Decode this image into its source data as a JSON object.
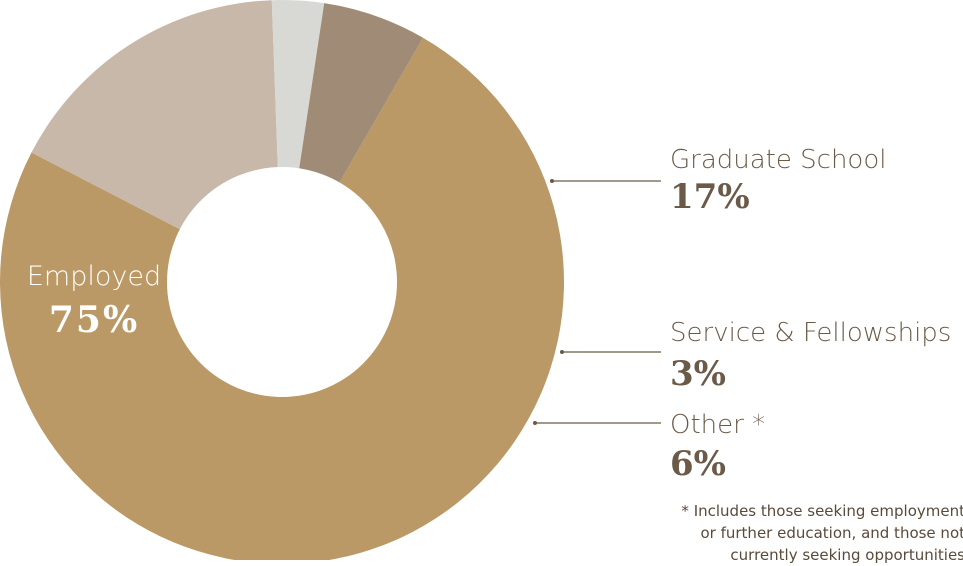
{
  "chart_data": {
    "type": "pie",
    "donut": true,
    "slices": [
      {
        "label": "Employed",
        "display": "75%",
        "value": 75,
        "color": "#bb9966"
      },
      {
        "label": "Graduate School",
        "display": "17%",
        "value": 17,
        "color": "#c8b8aa"
      },
      {
        "label": "Service & Fellowships",
        "display": "3%",
        "value": 3,
        "color": "#d8d8d4"
      },
      {
        "label": "Other *",
        "display": "6%",
        "value": 6,
        "color": "#a08b76"
      }
    ],
    "footnote": [
      "* Includes those seeking employment",
      "or further education, and those not",
      "currently seeking opportunities"
    ],
    "colors": {
      "label_text": "#6b5a48",
      "leader_line": "#6b5a48",
      "inner_label_text": "#ffffff"
    }
  }
}
